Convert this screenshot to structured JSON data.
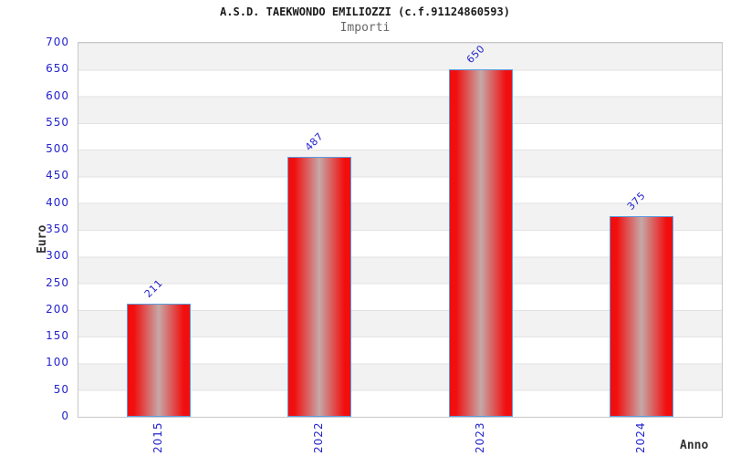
{
  "header": {
    "title": "A.S.D. TAEKWONDO EMILIOZZI (c.f.91124860593)",
    "subtitle": "Importi"
  },
  "chart_data": {
    "type": "bar",
    "title": "A.S.D. TAEKWONDO EMILIOZZI (c.f.91124860593)",
    "subtitle": "Importi",
    "categories": [
      "2015",
      "2022",
      "2023",
      "2024"
    ],
    "values": [
      211,
      487,
      650,
      375
    ],
    "xlabel": "Anno",
    "ylabel": "Euro",
    "ylim": [
      0,
      700
    ],
    "ytick_step": 50,
    "grid": "horizontal-bands-alternating",
    "legend": "none",
    "colors": {
      "bar_fill": "#f20d0d",
      "bar_center_highlight": "#c6a8a8",
      "bar_border": "#5b9ce0",
      "axis_text": "#2222cc",
      "band_gray": "#f2f2f2",
      "plot_border": "#c8c8c8",
      "title_text": "#1a1a1a",
      "subtitle_text": "#666666"
    }
  }
}
